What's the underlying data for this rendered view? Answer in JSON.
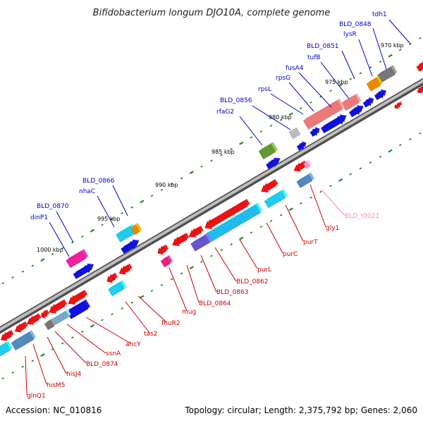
{
  "title": "Bifidobacterium longum DJO10A, complete genome",
  "footer": {
    "accession": "Accession: NC_010816",
    "summary": "Topology: circular; Length: 2,375,792 bp; Genes: 2,060"
  },
  "colors": {
    "top_strand_label": "#0000cc",
    "bottom_strand_label": "#cc0000",
    "rna_label": "#ff88bb",
    "backbone": "#888888",
    "tick": "#228822"
  },
  "scale": [
    "1000 kbp",
    "995 kbp",
    "990 kbp",
    "985 kbp",
    "980 kbp",
    "975 kbp",
    "970 kbp"
  ],
  "top_labels": [
    {
      "text": "tdh1"
    },
    {
      "text": "BLD_0848"
    },
    {
      "text": "lysR"
    },
    {
      "text": "BLD_0851"
    },
    {
      "text": "tufB"
    },
    {
      "text": "fusA4"
    },
    {
      "text": "rpsG"
    },
    {
      "text": "rpsL"
    },
    {
      "text": "BLD_0856"
    },
    {
      "text": "rfaG2"
    },
    {
      "text": "BLD_0866"
    },
    {
      "text": "nhaC"
    },
    {
      "text": "BLD_0870"
    },
    {
      "text": "dinP1"
    }
  ],
  "bottom_labels": [
    {
      "text": "BLD_t0021"
    },
    {
      "text": "gly1"
    },
    {
      "text": "purT"
    },
    {
      "text": "purC"
    },
    {
      "text": "purL"
    },
    {
      "text": "BLD_0862"
    },
    {
      "text": "BLD_0863"
    },
    {
      "text": "BLD_0864"
    },
    {
      "text": "mug"
    },
    {
      "text": "fhuR2"
    },
    {
      "text": "tas2"
    },
    {
      "text": "ahcY"
    },
    {
      "text": "ssnA"
    },
    {
      "text": "BLD_0874"
    },
    {
      "text": "hisJ4"
    },
    {
      "text": "hisM5"
    },
    {
      "text": "glnQ1"
    }
  ]
}
